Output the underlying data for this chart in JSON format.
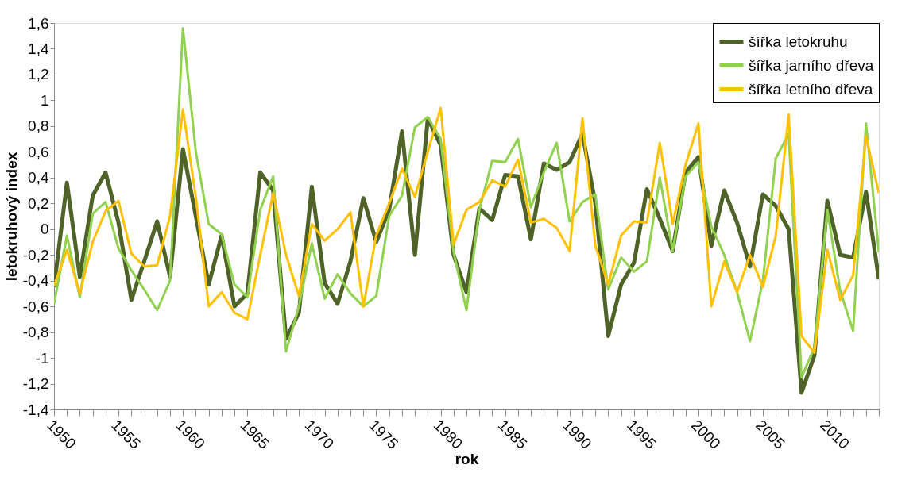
{
  "chart_data": {
    "type": "line",
    "xlabel": "rok",
    "ylabel": "letokruhový index",
    "x": [
      1950,
      1951,
      1952,
      1953,
      1954,
      1955,
      1956,
      1957,
      1958,
      1959,
      1960,
      1961,
      1962,
      1963,
      1964,
      1965,
      1966,
      1967,
      1968,
      1969,
      1970,
      1971,
      1972,
      1973,
      1974,
      1975,
      1976,
      1977,
      1978,
      1979,
      1980,
      1981,
      1982,
      1983,
      1984,
      1985,
      1986,
      1987,
      1988,
      1989,
      1990,
      1991,
      1992,
      1993,
      1994,
      1995,
      1996,
      1997,
      1998,
      1999,
      2000,
      2001,
      2002,
      2003,
      2004,
      2005,
      2006,
      2007,
      2008,
      2009,
      2010,
      2011,
      2012,
      2013,
      2014
    ],
    "series": [
      {
        "name": "šířka letokruhu",
        "color": "#4f6228",
        "values": [
          -0.45,
          0.36,
          -0.37,
          0.26,
          0.44,
          0.05,
          -0.55,
          -0.25,
          0.06,
          -0.37,
          0.62,
          0.1,
          -0.43,
          -0.05,
          -0.6,
          -0.5,
          0.44,
          0.3,
          -0.85,
          -0.65,
          0.33,
          -0.42,
          -0.58,
          -0.25,
          0.24,
          -0.1,
          0.15,
          0.76,
          -0.2,
          0.86,
          0.65,
          -0.2,
          -0.49,
          0.16,
          0.07,
          0.42,
          0.41,
          -0.08,
          0.51,
          0.46,
          0.52,
          0.74,
          0.2,
          -0.83,
          -0.43,
          -0.26,
          0.31,
          0.08,
          -0.17,
          0.44,
          0.56,
          -0.13,
          0.3,
          0.05,
          -0.29,
          0.27,
          0.18,
          0.0,
          -1.27,
          -0.98,
          0.22,
          -0.2,
          -0.22,
          0.29,
          -0.39
        ]
      },
      {
        "name": "šířka jarního dřeva",
        "color": "#92d050",
        "values": [
          -0.58,
          -0.05,
          -0.53,
          0.12,
          0.21,
          -0.15,
          -0.32,
          -0.47,
          -0.63,
          -0.4,
          1.56,
          0.6,
          0.04,
          -0.04,
          -0.43,
          -0.53,
          0.15,
          0.41,
          -0.95,
          -0.6,
          -0.11,
          -0.54,
          -0.35,
          -0.5,
          -0.6,
          -0.52,
          0.1,
          0.26,
          0.79,
          0.87,
          0.7,
          -0.18,
          -0.63,
          0.15,
          0.53,
          0.52,
          0.7,
          0.17,
          0.44,
          0.67,
          0.06,
          0.21,
          0.27,
          -0.47,
          -0.22,
          -0.33,
          -0.25,
          0.4,
          -0.17,
          0.41,
          0.52,
          0.02,
          -0.2,
          -0.49,
          -0.87,
          -0.4,
          0.55,
          0.74,
          -1.15,
          -0.92,
          0.15,
          -0.48,
          -0.79,
          0.82,
          -0.18
        ]
      },
      {
        "name": "šířka letního dřeva",
        "color": "#ffc000",
        "values": [
          -0.44,
          -0.16,
          -0.5,
          -0.1,
          0.14,
          0.22,
          -0.19,
          -0.29,
          -0.28,
          0.1,
          0.93,
          0.25,
          -0.6,
          -0.49,
          -0.65,
          -0.7,
          -0.2,
          0.28,
          -0.2,
          -0.52,
          0.04,
          -0.09,
          0.0,
          0.13,
          -0.6,
          -0.05,
          0.2,
          0.47,
          0.25,
          0.6,
          0.94,
          -0.12,
          0.15,
          0.21,
          0.38,
          0.33,
          0.54,
          0.05,
          0.08,
          0.01,
          -0.17,
          0.86,
          -0.13,
          -0.43,
          -0.05,
          0.06,
          0.05,
          0.67,
          0.04,
          0.5,
          0.82,
          -0.6,
          -0.25,
          -0.49,
          -0.2,
          -0.45,
          -0.05,
          0.89,
          -0.83,
          -0.96,
          -0.16,
          -0.55,
          -0.36,
          0.72,
          0.28
        ]
      }
    ],
    "xlim": [
      1950,
      2014
    ],
    "xticks": [
      1950,
      {
        "value": 1951,
        "label": null
      },
      {
        "value": 1952,
        "label": null
      },
      {
        "value": 1953,
        "label": null
      },
      {
        "value": 1954,
        "label": null
      },
      1955,
      {
        "value": 1956,
        "label": null
      },
      {
        "value": 1957,
        "label": null
      },
      {
        "value": 1958,
        "label": null
      },
      {
        "value": 1959,
        "label": null
      },
      1960,
      {
        "value": 1961,
        "label": null
      },
      {
        "value": 1962,
        "label": null
      },
      {
        "value": 1963,
        "label": null
      },
      {
        "value": 1964,
        "label": null
      },
      1965,
      {
        "value": 1966,
        "label": null
      },
      {
        "value": 1967,
        "label": null
      },
      {
        "value": 1968,
        "label": null
      },
      {
        "value": 1969,
        "label": null
      },
      1970,
      {
        "value": 1971,
        "label": null
      },
      {
        "value": 1972,
        "label": null
      },
      {
        "value": 1973,
        "label": null
      },
      {
        "value": 1974,
        "label": null
      },
      1975,
      {
        "value": 1976,
        "label": null
      },
      {
        "value": 1977,
        "label": null
      },
      {
        "value": 1978,
        "label": null
      },
      {
        "value": 1979,
        "label": null
      },
      1980,
      {
        "value": 1981,
        "label": null
      },
      {
        "value": 1982,
        "label": null
      },
      {
        "value": 1983,
        "label": null
      },
      {
        "value": 1984,
        "label": null
      },
      1985,
      {
        "value": 1986,
        "label": null
      },
      {
        "value": 1987,
        "label": null
      },
      {
        "value": 1988,
        "label": null
      },
      {
        "value": 1989,
        "label": null
      },
      1990,
      {
        "value": 1991,
        "label": null
      },
      {
        "value": 1992,
        "label": null
      },
      {
        "value": 1993,
        "label": null
      },
      {
        "value": 1994,
        "label": null
      },
      1995,
      {
        "value": 1996,
        "label": null
      },
      {
        "value": 1997,
        "label": null
      },
      {
        "value": 1998,
        "label": null
      },
      {
        "value": 1999,
        "label": null
      },
      2000,
      {
        "value": 2001,
        "label": null
      },
      {
        "value": 2002,
        "label": null
      },
      {
        "value": 2003,
        "label": null
      },
      {
        "value": 2004,
        "label": null
      },
      2005,
      {
        "value": 2006,
        "label": null
      },
      {
        "value": 2007,
        "label": null
      },
      {
        "value": 2008,
        "label": null
      },
      {
        "value": 2009,
        "label": null
      },
      2010,
      {
        "value": 2011,
        "label": null
      },
      {
        "value": 2012,
        "label": null
      },
      {
        "value": 2013,
        "label": null
      },
      {
        "value": 2014,
        "label": null
      }
    ],
    "ylim": [
      -1.4,
      1.6
    ],
    "yticks": [
      {
        "value": -1.4,
        "label": "-1,4"
      },
      {
        "value": -1.2,
        "label": "-1,2"
      },
      -1,
      {
        "value": -0.8,
        "label": "-0,8"
      },
      {
        "value": -0.6,
        "label": "-0,6"
      },
      {
        "value": -0.4,
        "label": "-0,4"
      },
      {
        "value": -0.2,
        "label": "-0,2"
      },
      0,
      {
        "value": 0.2,
        "label": "0,2"
      },
      {
        "value": 0.4,
        "label": "0,4"
      },
      {
        "value": 0.6,
        "label": "0,6"
      },
      {
        "value": 0.8,
        "label": "0,8"
      },
      1,
      {
        "value": 1.2,
        "label": "1,2"
      },
      {
        "value": 1.4,
        "label": "1,4"
      },
      {
        "value": 1.6,
        "label": "1,6"
      }
    ],
    "grid": false,
    "legend": "top right",
    "marker": "none",
    "line_style": "solid"
  }
}
